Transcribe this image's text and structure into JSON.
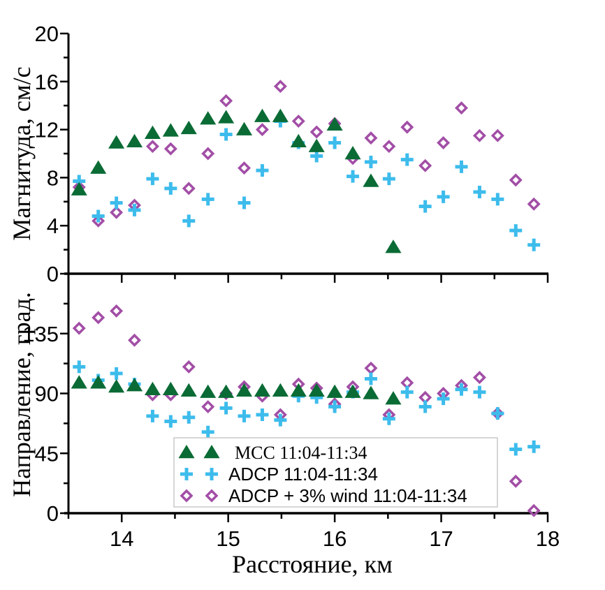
{
  "chart_data": [
    {
      "type": "scatter",
      "panel": "top",
      "title": "",
      "xlabel": "",
      "ylabel": "Магнитуда, см/с",
      "xlim": [
        13.5,
        18
      ],
      "ylim": [
        0,
        20
      ],
      "yticks": [
        0,
        4,
        8,
        12,
        16,
        20
      ],
      "ytick_labels": [
        "0",
        "4",
        "8",
        "12",
        "16",
        "20"
      ],
      "grid": false,
      "series": [
        {
          "name": "MCC 11:04-11:34",
          "marker": "triangle",
          "color": "#0a6b35",
          "x": [
            13.6,
            13.78,
            13.95,
            14.12,
            14.29,
            14.46,
            14.63,
            14.81,
            14.98,
            15.15,
            15.32,
            15.49,
            15.66,
            15.83,
            16.0,
            16.17,
            16.34,
            16.55
          ],
          "y": [
            7.0,
            8.8,
            10.9,
            11.0,
            11.7,
            11.9,
            12.1,
            12.9,
            13.0,
            12.0,
            13.1,
            13.1,
            11.0,
            10.6,
            12.4,
            10.0,
            7.7,
            2.2
          ]
        },
        {
          "name": "ADCP 11:04-11:34",
          "marker": "plus",
          "color": "#3dbcec",
          "x": [
            13.6,
            13.78,
            13.95,
            14.12,
            14.29,
            14.46,
            14.63,
            14.81,
            14.98,
            15.15,
            15.32,
            15.49,
            15.66,
            15.83,
            16.0,
            16.17,
            16.34,
            16.51,
            16.68,
            16.85,
            17.02,
            17.19,
            17.36,
            17.53,
            17.7,
            17.87
          ],
          "y": [
            7.7,
            4.8,
            5.9,
            5.3,
            7.9,
            7.1,
            4.4,
            6.2,
            11.6,
            5.9,
            8.6,
            12.7,
            10.9,
            9.8,
            10.9,
            8.1,
            9.3,
            7.9,
            9.5,
            5.6,
            6.4,
            8.9,
            6.8,
            6.2,
            3.6,
            2.4
          ]
        },
        {
          "name": "ADCP + 3% wind 11:04-11:34",
          "marker": "diamond-open",
          "color": "#a24ea6",
          "x": [
            13.6,
            13.78,
            13.95,
            14.12,
            14.29,
            14.46,
            14.63,
            14.81,
            14.98,
            15.15,
            15.32,
            15.49,
            15.66,
            15.83,
            16.0,
            16.17,
            16.34,
            16.51,
            16.68,
            16.85,
            17.02,
            17.19,
            17.36,
            17.53,
            17.7,
            17.87
          ],
          "y": [
            7.2,
            4.4,
            5.1,
            5.7,
            10.6,
            10.4,
            7.1,
            10.0,
            14.4,
            8.8,
            12.0,
            15.6,
            12.7,
            11.8,
            12.5,
            9.6,
            11.3,
            10.6,
            12.2,
            9.0,
            10.9,
            13.8,
            11.5,
            11.5,
            7.8,
            5.8
          ]
        }
      ]
    },
    {
      "type": "scatter",
      "panel": "bottom",
      "title": "",
      "xlabel": "Расстояние, км",
      "ylabel": "Направление, град.",
      "xlim": [
        13.5,
        18
      ],
      "ylim": [
        0,
        180
      ],
      "xticks": [
        14,
        15,
        16,
        17,
        18
      ],
      "xtick_labels": [
        "14",
        "15",
        "16",
        "17",
        "18"
      ],
      "yticks": [
        0,
        45,
        90,
        135
      ],
      "ytick_labels": [
        "0",
        "45",
        "90",
        "135"
      ],
      "grid": false,
      "legend": {
        "placement": "bottom-center",
        "entries": [
          "MCC 11:04-11:34",
          "ADCP 11:04-11:34",
          "ADCP + 3% wind 11:04-11:34"
        ]
      },
      "series": [
        {
          "name": "MCC 11:04-11:34",
          "marker": "triangle",
          "color": "#0a6b35",
          "x": [
            13.6,
            13.78,
            13.95,
            14.12,
            14.29,
            14.46,
            14.63,
            14.81,
            14.98,
            15.15,
            15.32,
            15.49,
            15.66,
            15.83,
            16.0,
            16.17,
            16.34,
            16.55
          ],
          "y": [
            98,
            98,
            95,
            96,
            93,
            93,
            92,
            91,
            91,
            92,
            92,
            92,
            92,
            92,
            91,
            91,
            90,
            86
          ]
        },
        {
          "name": "ADCP 11:04-11:34",
          "marker": "plus",
          "color": "#3dbcec",
          "x": [
            13.6,
            13.78,
            13.95,
            14.12,
            14.29,
            14.46,
            14.63,
            14.81,
            14.98,
            15.15,
            15.32,
            15.49,
            15.66,
            15.83,
            16.0,
            16.17,
            16.34,
            16.51,
            16.68,
            16.85,
            17.02,
            17.19,
            17.36,
            17.53,
            17.7,
            17.87
          ],
          "y": [
            110,
            100,
            105,
            97,
            73,
            69,
            72,
            61,
            79,
            73,
            74,
            70,
            88,
            87,
            80,
            91,
            101,
            71,
            91,
            80,
            86,
            93,
            91,
            75,
            48,
            50
          ]
        },
        {
          "name": "ADCP + 3% wind 11:04-11:34",
          "marker": "diamond-open",
          "color": "#a24ea6",
          "x": [
            13.6,
            13.78,
            13.95,
            14.12,
            14.29,
            14.46,
            14.63,
            14.81,
            14.98,
            15.15,
            15.32,
            15.49,
            15.66,
            15.83,
            16.0,
            16.17,
            16.34,
            16.51,
            16.68,
            16.85,
            17.02,
            17.19,
            17.36,
            17.53,
            17.7,
            17.87
          ],
          "y": [
            139,
            147,
            152,
            130,
            89,
            89,
            110,
            80,
            90,
            95,
            88,
            74,
            97,
            94,
            82,
            95,
            109,
            74,
            98,
            87,
            90,
            96,
            102,
            75,
            24,
            2
          ]
        }
      ]
    }
  ],
  "legend": {
    "entries": [
      {
        "label": "MCC 11:04-11:34",
        "marker": "triangle",
        "color": "#0a6b35"
      },
      {
        "label": "ADCP 11:04-11:34",
        "marker": "plus",
        "color": "#3dbcec"
      },
      {
        "label": "ADCP + 3% wind 11:04-11:34",
        "marker": "diamond-open",
        "color": "#a24ea6"
      }
    ]
  },
  "labels": {
    "top_ylabel": "Магнитуда, см/с",
    "bottom_ylabel": "Направление, град.",
    "xlabel": "Расстояние, км"
  }
}
